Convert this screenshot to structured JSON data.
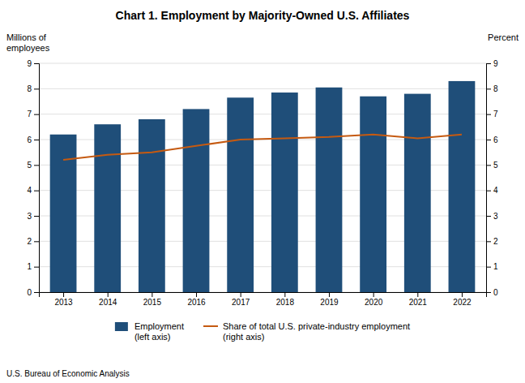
{
  "chart_data": {
    "type": "bar",
    "title": "Chart 1. Employment by Majority-Owned U.S. Affiliates",
    "x": [
      2013,
      2014,
      2015,
      2016,
      2017,
      2018,
      2019,
      2020,
      2021,
      2022
    ],
    "xlim": [
      2012.45,
      2022.55
    ],
    "xticks": [
      2013,
      2014,
      2015,
      2016,
      2017,
      2018,
      2019,
      2020,
      2021,
      2022
    ],
    "ylabel": "Millions of\nemployees",
    "y2label": "Percent",
    "ylim": [
      0,
      9
    ],
    "yticks": [
      0,
      1,
      2,
      3,
      4,
      5,
      6,
      7,
      8,
      9
    ],
    "y2lim": [
      0,
      9
    ],
    "y2ticks": [
      0,
      1,
      2,
      3,
      4,
      5,
      6,
      7,
      8,
      9
    ],
    "grid": true,
    "legend": "bottom",
    "series": [
      {
        "name": "Employment\n(left axis)",
        "type": "bar",
        "color": "#1F4E79",
        "values": [
          6.2,
          6.6,
          6.8,
          7.2,
          7.65,
          7.85,
          8.05,
          7.7,
          7.8,
          8.3
        ]
      },
      {
        "name": "Share of total U.S. private-industry employment\n(right axis)",
        "type": "line",
        "color": "#C55A11",
        "axis": "y2",
        "values": [
          5.2,
          5.4,
          5.5,
          5.75,
          6.0,
          6.05,
          6.1,
          6.2,
          6.05,
          6.2
        ]
      }
    ],
    "annotations": [
      "U.S. Bureau of Economic Analysis"
    ]
  }
}
